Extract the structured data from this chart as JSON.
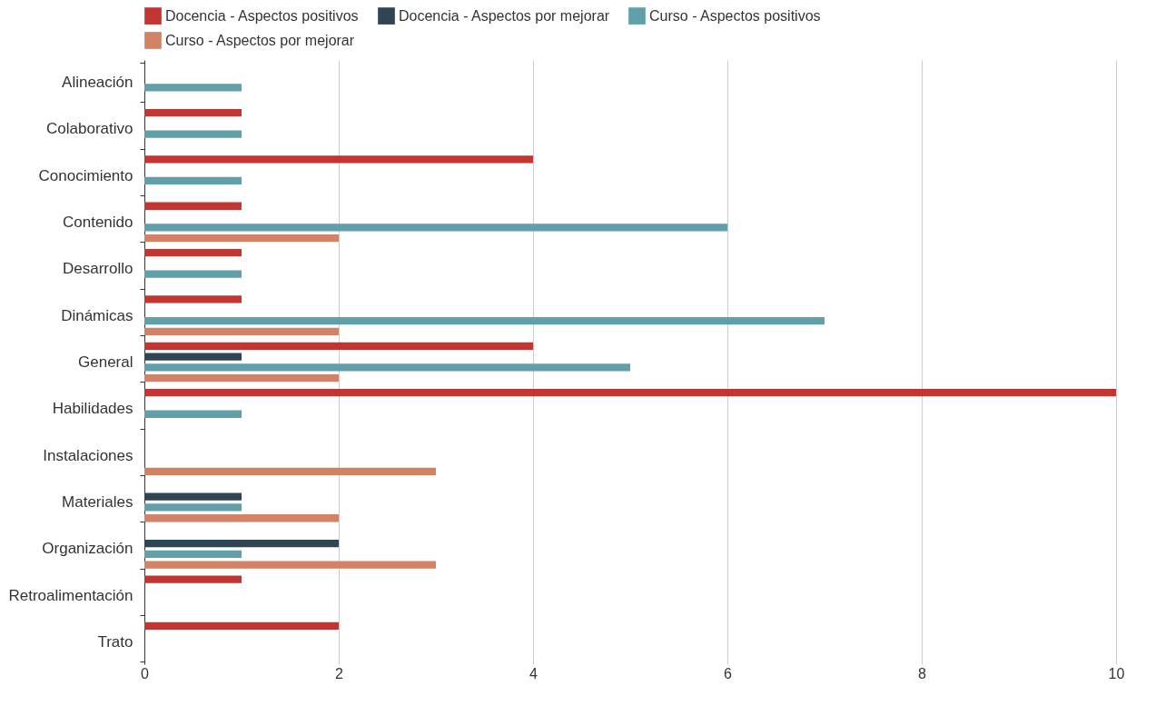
{
  "chart_data": {
    "type": "bar",
    "orientation": "horizontal",
    "categories": [
      "Alineación",
      "Colaborativo",
      "Conocimiento",
      "Contenido",
      "Desarrollo",
      "Dinámicas",
      "General",
      "Habilidades",
      "Instalaciones",
      "Materiales",
      "Organización",
      "Retroalimentación",
      "Trato"
    ],
    "series": [
      {
        "name": "Docencia - Aspectos positivos",
        "color": "#c23531",
        "values": [
          null,
          1,
          4,
          1,
          1,
          1,
          4,
          10,
          null,
          null,
          null,
          1,
          2
        ]
      },
      {
        "name": "Docencia - Aspectos por mejorar",
        "color": "#2f4554",
        "values": [
          null,
          null,
          null,
          null,
          null,
          null,
          1,
          null,
          null,
          1,
          2,
          null,
          null
        ]
      },
      {
        "name": "Curso - Aspectos positivos",
        "color": "#61a0a8",
        "values": [
          1,
          1,
          1,
          6,
          1,
          7,
          5,
          1,
          null,
          1,
          1,
          null,
          null
        ]
      },
      {
        "name": "Curso - Aspectos por mejorar",
        "color": "#d48265",
        "values": [
          null,
          null,
          null,
          2,
          null,
          2,
          2,
          null,
          3,
          2,
          3,
          null,
          null
        ]
      }
    ],
    "xlim": [
      0,
      10
    ],
    "xticks": [
      0,
      2,
      4,
      6,
      8,
      10
    ],
    "grid": "x",
    "legend": "top"
  }
}
